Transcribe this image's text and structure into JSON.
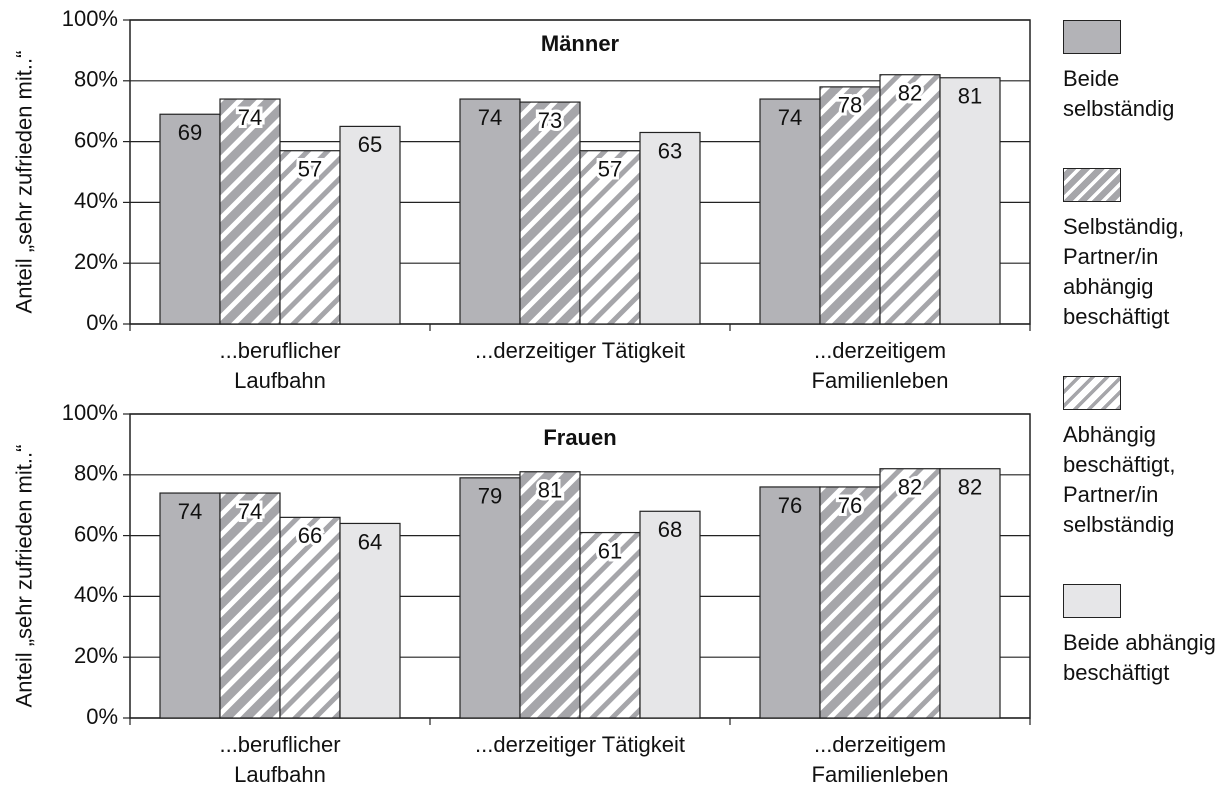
{
  "chart_data": [
    {
      "type": "bar",
      "title": "Männer",
      "y_label": "Anteil „sehr zufrieden mit..“",
      "categories": [
        "...beruflicher Laufbahn",
        "...derzeitiger Tätigkeit",
        "...derzeitigem Familienleben"
      ],
      "series": [
        {
          "name": "Beide selbständig",
          "color": "#b3b3b7",
          "values": [
            69,
            74,
            74
          ]
        },
        {
          "name": "Selbständig, Partner/in abhängig beschäftigt",
          "color": "#a6a6aa",
          "hatch": "#ffffff",
          "values": [
            74,
            73,
            78
          ]
        },
        {
          "name": "Abhängig beschäftigt, Partner/in selbständig",
          "color": "#ffffff",
          "hatch": "#a6a6aa",
          "values": [
            57,
            57,
            82
          ]
        },
        {
          "name": "Beide abhängig beschäftigt",
          "color": "#e6e6e8",
          "values": [
            65,
            63,
            81
          ]
        }
      ],
      "ylim": [
        0,
        100
      ],
      "yticks": [
        {
          "value": 0,
          "label": "0%"
        },
        {
          "value": 20,
          "label": "20%"
        },
        {
          "value": 40,
          "label": "40%"
        },
        {
          "value": 60,
          "label": "60%"
        },
        {
          "value": 80,
          "label": "80%"
        },
        {
          "value": 100,
          "label": "100%"
        }
      ],
      "grid": true
    },
    {
      "type": "bar",
      "title": "Frauen",
      "y_label": "Anteil „sehr zufrieden mit..“",
      "categories": [
        "...beruflicher Laufbahn",
        "...derzeitiger Tätigkeit",
        "...derzeitigem Familienleben"
      ],
      "series": [
        {
          "color": "#b3b3b7",
          "values": [
            74,
            79,
            76
          ]
        },
        {
          "color": "#a6a6aa",
          "hatch": "#ffffff",
          "values": [
            74,
            81,
            76
          ]
        },
        {
          "color": "#ffffff",
          "hatch": "#a6a6aa",
          "values": [
            66,
            61,
            82
          ]
        },
        {
          "color": "#e6e6e8",
          "values": [
            64,
            68,
            82
          ]
        }
      ],
      "ylim": [
        0,
        100
      ],
      "yticks": [
        {
          "value": 0,
          "label": "0%"
        },
        {
          "value": 20,
          "label": "20%"
        },
        {
          "value": 40,
          "label": "40%"
        },
        {
          "value": 60,
          "label": "60%"
        },
        {
          "value": 80,
          "label": "80%"
        },
        {
          "value": 100,
          "label": "100%"
        }
      ],
      "grid": true
    }
  ]
}
